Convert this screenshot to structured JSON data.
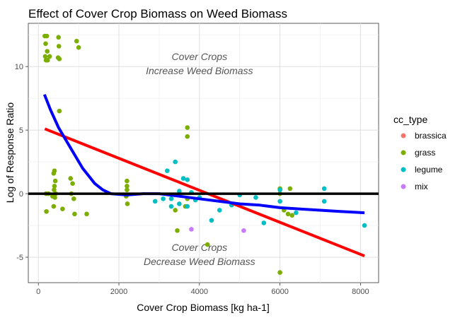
{
  "chart_data": {
    "type": "scatter",
    "title": "Effect of Cover Crop Biomass on Weed Biomass",
    "xlabel": "Cover Crop Biomass [kg ha-1]",
    "ylabel": "Log of Response Ratio",
    "xlim": [
      -250,
      8450
    ],
    "ylim": [
      -7,
      13.4
    ],
    "x_ticks": [
      0,
      2000,
      4000,
      6000,
      8000
    ],
    "y_ticks": [
      -5,
      0,
      5,
      10
    ],
    "grid": true,
    "legend": {
      "title": "cc_type",
      "placement": "right",
      "entries": [
        {
          "label": "brassica",
          "color": "#F8766D"
        },
        {
          "label": "grass",
          "color": "#7CAE00"
        },
        {
          "label": "legume",
          "color": "#00BFC4"
        },
        {
          "label": "mix",
          "color": "#C77CFF"
        }
      ]
    },
    "annotations": [
      {
        "text": "Cover Crops",
        "x": 4000,
        "y": 10.5
      },
      {
        "text": "Increase Weed Biomass",
        "x": 4000,
        "y": 9.4
      },
      {
        "text": "Cover Crops",
        "x": 4000,
        "y": -4.5
      },
      {
        "text": "Decrease Weed Biomass",
        "x": 4000,
        "y": -5.6
      }
    ],
    "reference_line": {
      "y": 0,
      "color": "#000000"
    },
    "series": [
      {
        "name": "grass",
        "color": "#7CAE00",
        "points": [
          [
            160,
            12.4
          ],
          [
            210,
            12.4
          ],
          [
            180,
            11.8
          ],
          [
            220,
            11.2
          ],
          [
            170,
            10.8
          ],
          [
            190,
            10.5
          ],
          [
            230,
            10.5
          ],
          [
            280,
            10.8
          ],
          [
            500,
            12.3
          ],
          [
            510,
            11.6
          ],
          [
            490,
            10.7
          ],
          [
            520,
            10.6
          ],
          [
            950,
            12.0
          ],
          [
            1000,
            11.5
          ],
          [
            520,
            6.5
          ],
          [
            400,
            1.8
          ],
          [
            380,
            1.6
          ],
          [
            420,
            1.0
          ],
          [
            400,
            0.6
          ],
          [
            390,
            0.3
          ],
          [
            430,
            0.0
          ],
          [
            350,
            -0.2
          ],
          [
            410,
            -0.3
          ],
          [
            190,
            0.0
          ],
          [
            250,
            0.0
          ],
          [
            200,
            -1.4
          ],
          [
            380,
            -1.0
          ],
          [
            600,
            -1.2
          ],
          [
            800,
            1.2
          ],
          [
            850,
            0.8
          ],
          [
            820,
            0.0
          ],
          [
            880,
            -0.4
          ],
          [
            900,
            -1.6
          ],
          [
            1200,
            -1.6
          ],
          [
            2200,
            1.0
          ],
          [
            2200,
            0.6
          ],
          [
            2200,
            0.3
          ],
          [
            2180,
            -0.2
          ],
          [
            2210,
            -0.8
          ],
          [
            3700,
            5.2
          ],
          [
            3700,
            4.5
          ],
          [
            3700,
            -0.4
          ],
          [
            3400,
            -1.3
          ],
          [
            3450,
            -2.9
          ],
          [
            3650,
            -1.0
          ],
          [
            4200,
            -4.0
          ],
          [
            6000,
            0.4
          ],
          [
            6000,
            0.0
          ],
          [
            6100,
            -1.3
          ],
          [
            6200,
            -1.6
          ],
          [
            6300,
            -1.7
          ],
          [
            6250,
            0.4
          ],
          [
            6000,
            -6.2
          ]
        ]
      },
      {
        "name": "legume",
        "color": "#00BFC4",
        "points": [
          [
            3200,
            1.8
          ],
          [
            3400,
            2.5
          ],
          [
            3600,
            1.2
          ],
          [
            3700,
            1.1
          ],
          [
            3800,
            0.1
          ],
          [
            3500,
            0.2
          ],
          [
            3100,
            -0.4
          ],
          [
            3300,
            -0.4
          ],
          [
            3500,
            -0.8
          ],
          [
            3700,
            -1.0
          ],
          [
            3900,
            -0.5
          ],
          [
            4000,
            -0.3
          ],
          [
            4300,
            -2.1
          ],
          [
            4500,
            -1.3
          ],
          [
            4800,
            -0.9
          ],
          [
            5000,
            -0.1
          ],
          [
            5400,
            -0.3
          ],
          [
            5600,
            -2.3
          ],
          [
            6000,
            0.3
          ],
          [
            6000,
            -0.6
          ],
          [
            6400,
            -1.5
          ],
          [
            7100,
            0.4
          ],
          [
            7100,
            -0.6
          ],
          [
            8100,
            -2.5
          ],
          [
            2900,
            -0.6
          ],
          [
            3300,
            -1.0
          ]
        ]
      },
      {
        "name": "mix",
        "color": "#C77CFF",
        "points": [
          [
            3800,
            -2.8
          ],
          [
            5100,
            -2.9
          ]
        ]
      },
      {
        "name": "brassica",
        "color": "#F8766D",
        "points": []
      }
    ],
    "fit_lines": [
      {
        "color": "#FF0000",
        "method": "linear",
        "points": [
          [
            160,
            5.1
          ],
          [
            8100,
            -4.9
          ]
        ]
      },
      {
        "color": "#0000FF",
        "method": "smooth",
        "points": [
          [
            150,
            7.8
          ],
          [
            300,
            6.6
          ],
          [
            500,
            5.2
          ],
          [
            800,
            3.6
          ],
          [
            1100,
            2.0
          ],
          [
            1400,
            0.8
          ],
          [
            1600,
            0.3
          ],
          [
            1800,
            0.0
          ],
          [
            2200,
            -0.1
          ],
          [
            2600,
            0.0
          ],
          [
            3000,
            0.0
          ],
          [
            3500,
            -0.2
          ],
          [
            4000,
            -0.4
          ],
          [
            4500,
            -0.6
          ],
          [
            5000,
            -0.8
          ],
          [
            5500,
            -0.9
          ],
          [
            6000,
            -1.1
          ],
          [
            6500,
            -1.2
          ],
          [
            7000,
            -1.3
          ],
          [
            7500,
            -1.4
          ],
          [
            8100,
            -1.5
          ]
        ]
      }
    ]
  }
}
